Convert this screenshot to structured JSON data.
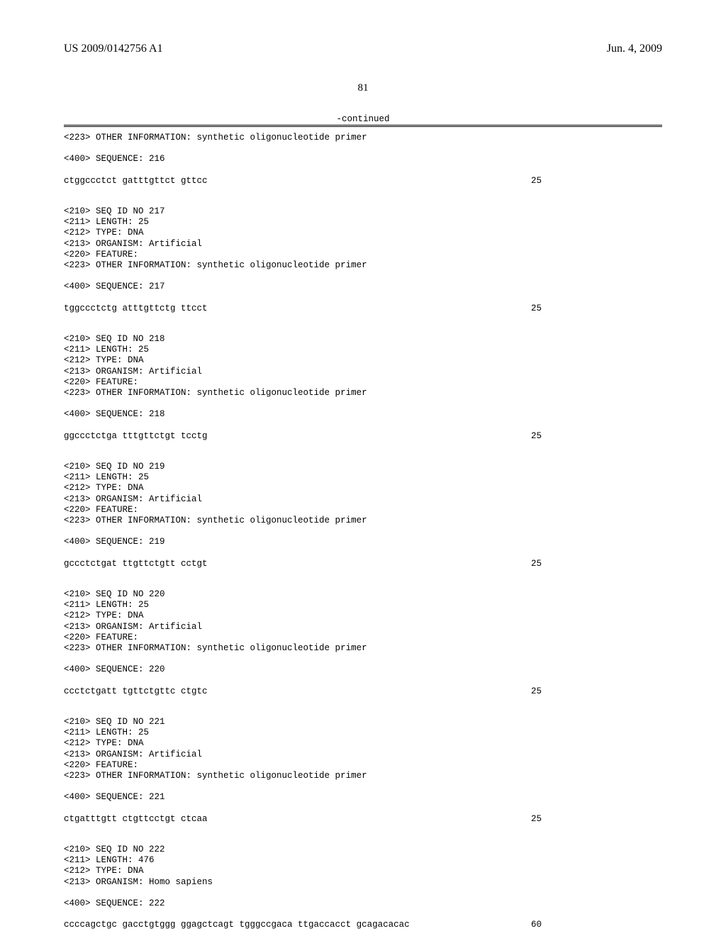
{
  "header": {
    "left": "US 2009/0142756 A1",
    "right": "Jun. 4, 2009"
  },
  "page_number": "81",
  "continued_label": "-continued",
  "blocks": [
    {
      "lines": [
        "<223> OTHER INFORMATION: synthetic oligonucleotide primer"
      ],
      "seq_label": "<400> SEQUENCE: 216",
      "seq_text": "ctggccctct gatttgttct gttcc",
      "seq_num": "25"
    },
    {
      "lines": [
        "<210> SEQ ID NO 217",
        "<211> LENGTH: 25",
        "<212> TYPE: DNA",
        "<213> ORGANISM: Artificial",
        "<220> FEATURE:",
        "<223> OTHER INFORMATION: synthetic oligonucleotide primer"
      ],
      "seq_label": "<400> SEQUENCE: 217",
      "seq_text": "tggccctctg atttgttctg ttcct",
      "seq_num": "25"
    },
    {
      "lines": [
        "<210> SEQ ID NO 218",
        "<211> LENGTH: 25",
        "<212> TYPE: DNA",
        "<213> ORGANISM: Artificial",
        "<220> FEATURE:",
        "<223> OTHER INFORMATION: synthetic oligonucleotide primer"
      ],
      "seq_label": "<400> SEQUENCE: 218",
      "seq_text": "ggccctctga tttgttctgt tcctg",
      "seq_num": "25"
    },
    {
      "lines": [
        "<210> SEQ ID NO 219",
        "<211> LENGTH: 25",
        "<212> TYPE: DNA",
        "<213> ORGANISM: Artificial",
        "<220> FEATURE:",
        "<223> OTHER INFORMATION: synthetic oligonucleotide primer"
      ],
      "seq_label": "<400> SEQUENCE: 219",
      "seq_text": "gccctctgat ttgttctgtt cctgt",
      "seq_num": "25"
    },
    {
      "lines": [
        "<210> SEQ ID NO 220",
        "<211> LENGTH: 25",
        "<212> TYPE: DNA",
        "<213> ORGANISM: Artificial",
        "<220> FEATURE:",
        "<223> OTHER INFORMATION: synthetic oligonucleotide primer"
      ],
      "seq_label": "<400> SEQUENCE: 220",
      "seq_text": "ccctctgatt tgttctgttc ctgtc",
      "seq_num": "25"
    },
    {
      "lines": [
        "<210> SEQ ID NO 221",
        "<211> LENGTH: 25",
        "<212> TYPE: DNA",
        "<213> ORGANISM: Artificial",
        "<220> FEATURE:",
        "<223> OTHER INFORMATION: synthetic oligonucleotide primer"
      ],
      "seq_label": "<400> SEQUENCE: 221",
      "seq_text": "ctgatttgtt ctgttcctgt ctcaa",
      "seq_num": "25"
    },
    {
      "lines": [
        "<210> SEQ ID NO 222",
        "<211> LENGTH: 476",
        "<212> TYPE: DNA",
        "<213> ORGANISM: Homo sapiens"
      ],
      "seq_label": "<400> SEQUENCE: 222",
      "seq_text": "ccccagctgc gacctgtggg ggagctcagt tgggccgaca ttgaccacct gcagacacac",
      "seq_num": "60"
    }
  ]
}
